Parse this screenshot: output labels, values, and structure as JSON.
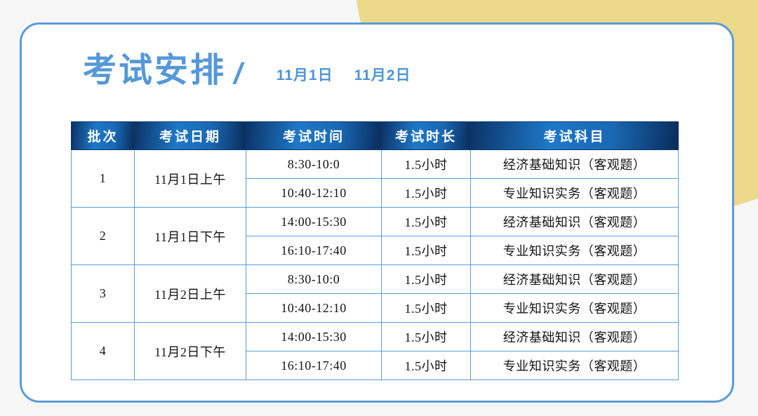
{
  "page": {
    "title": "考试安排",
    "title_slash": "/",
    "date_left": "11月1日",
    "date_right": "11月2日"
  },
  "table": {
    "headers": {
      "batch": "批次",
      "date": "考试日期",
      "time": "考试时间",
      "duration": "考试时长",
      "subject": "考试科目"
    },
    "groups": [
      {
        "batch": "1",
        "date": "11月1日上午",
        "sessions": [
          {
            "time": "8:30-10:0",
            "duration": "1.5小时",
            "subject": "经济基础知识（客观题）"
          },
          {
            "time": "10:40-12:10",
            "duration": "1.5小时",
            "subject": "专业知识实务（客观题）"
          }
        ]
      },
      {
        "batch": "2",
        "date": "11月1日下午",
        "sessions": [
          {
            "time": "14:00-15:30",
            "duration": "1.5小时",
            "subject": "经济基础知识（客观题）"
          },
          {
            "time": "16:10-17:40",
            "duration": "1.5小时",
            "subject": "专业知识实务（客观题）"
          }
        ]
      },
      {
        "batch": "3",
        "date": "11月2日上午",
        "sessions": [
          {
            "time": "8:30-10:0",
            "duration": "1.5小时",
            "subject": "经济基础知识（客观题）"
          },
          {
            "time": "10:40-12:10",
            "duration": "1.5小时",
            "subject": "专业知识实务（客观题）"
          }
        ]
      },
      {
        "batch": "4",
        "date": "11月2日下午",
        "sessions": [
          {
            "time": "14:00-15:30",
            "duration": "1.5小时",
            "subject": "经济基础知识（客观题）"
          },
          {
            "time": "16:10-17:40",
            "duration": "1.5小时",
            "subject": "专业知识实务（客观题）"
          }
        ]
      }
    ]
  },
  "colors": {
    "accent_blue": "#5598d8",
    "card_border": "#5b9bd5",
    "grid_line": "#5b9bd5",
    "header_gradient_dark": "#082c5a",
    "header_gradient_light": "#1e78c8",
    "blob_yellow": "#ecd98b",
    "page_background": "#f7f7f8"
  }
}
